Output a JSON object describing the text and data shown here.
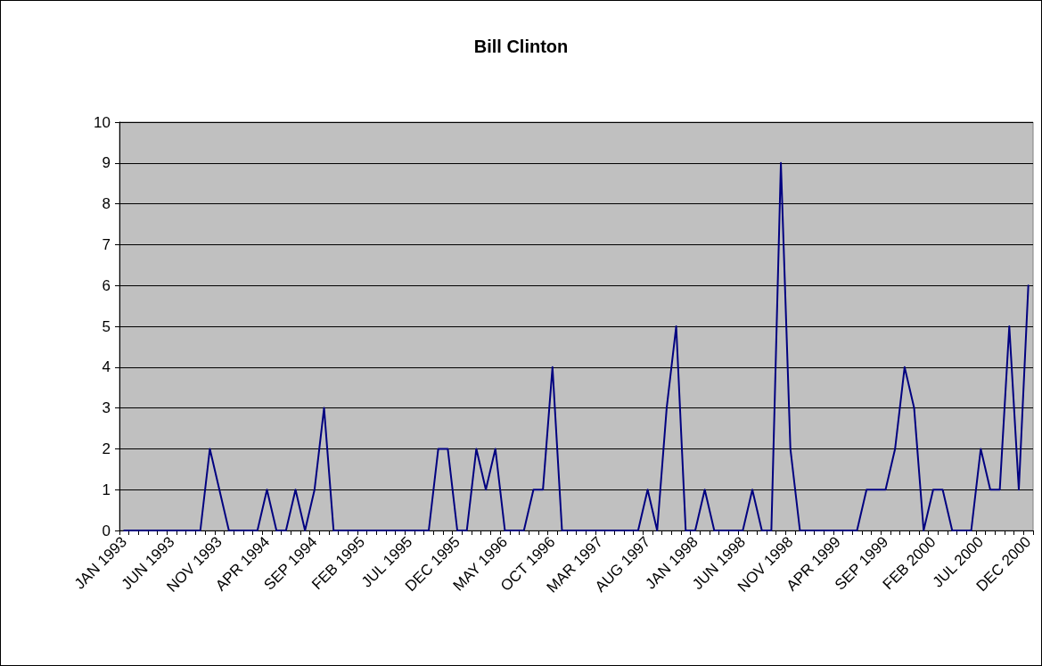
{
  "chart_data": {
    "type": "line",
    "title": "Bill Clinton",
    "categories": [
      "JAN 1993",
      null,
      null,
      null,
      null,
      "JUN 1993",
      null,
      null,
      null,
      null,
      "NOV 1993",
      null,
      null,
      null,
      null,
      "APR 1994",
      null,
      null,
      null,
      null,
      "SEP 1994",
      null,
      null,
      null,
      null,
      "FEB 1995",
      null,
      null,
      null,
      null,
      "JUL 1995",
      null,
      null,
      null,
      null,
      "DEC 1995",
      null,
      null,
      null,
      null,
      "MAY 1996",
      null,
      null,
      null,
      null,
      "OCT 1996",
      null,
      null,
      null,
      null,
      "MAR 1997",
      null,
      null,
      null,
      null,
      "AUG 1997",
      null,
      null,
      null,
      null,
      "JAN 1998",
      null,
      null,
      null,
      null,
      "JUN 1998",
      null,
      null,
      null,
      null,
      "NOV 1998",
      null,
      null,
      null,
      null,
      "APR 1999",
      null,
      null,
      null,
      null,
      "SEP 1999",
      null,
      null,
      null,
      null,
      "FEB 2000",
      null,
      null,
      null,
      null,
      "JUL 2000",
      null,
      null,
      null,
      null,
      "DEC 2000"
    ],
    "series": [
      {
        "color": "#000080",
        "values": [
          0,
          0,
          0,
          0,
          0,
          0,
          0,
          0,
          0,
          2,
          1,
          0,
          0,
          0,
          0,
          1,
          0,
          0,
          1,
          0,
          1,
          3,
          0,
          0,
          0,
          0,
          0,
          0,
          0,
          0,
          0,
          0,
          0,
          2,
          2,
          0,
          0,
          2,
          1,
          2,
          0,
          0,
          0,
          1,
          1,
          4,
          0,
          0,
          0,
          0,
          0,
          0,
          0,
          0,
          0,
          1,
          0,
          3,
          5,
          0,
          0,
          1,
          0,
          0,
          0,
          0,
          1,
          0,
          0,
          9,
          2,
          0,
          0,
          0,
          0,
          0,
          0,
          0,
          1,
          1,
          1,
          2,
          4,
          3,
          0,
          1,
          1,
          0,
          0,
          0,
          2,
          1,
          1,
          5,
          1,
          6
        ]
      }
    ],
    "ylim": [
      0,
      10
    ],
    "yticks": [
      0,
      1,
      2,
      3,
      4,
      5,
      6,
      7,
      8,
      9,
      10
    ],
    "grid": "y",
    "marker": "none",
    "line_style": "solid"
  }
}
